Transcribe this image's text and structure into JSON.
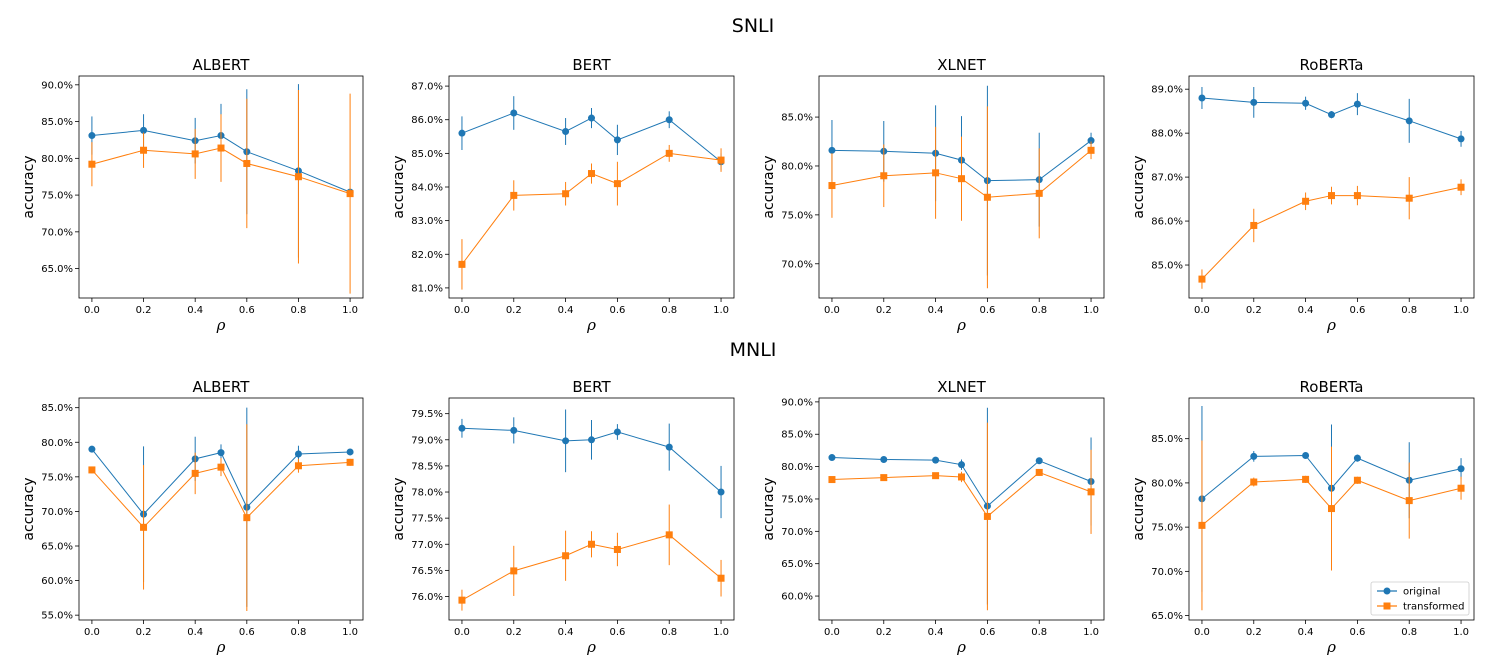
{
  "colors": {
    "original": "#1f77b4",
    "transformed": "#ff7f0e"
  },
  "legend": {
    "placement": "lower-right",
    "entries": [
      "original",
      "transformed"
    ]
  },
  "sections": [
    {
      "title": "SNLI"
    },
    {
      "title": "MNLI"
    }
  ],
  "chart_data": [
    {
      "type": "line",
      "group": "SNLI",
      "title": "ALBERT",
      "xlabel": "ρ",
      "ylabel": "accuracy",
      "x": [
        0.0,
        0.2,
        0.4,
        0.5,
        0.6,
        0.8,
        1.0
      ],
      "xticks": [
        "0.0",
        "0.2",
        "0.4",
        "0.6",
        "0.8",
        "1.0"
      ],
      "ylim": [
        61.0,
        91.2
      ],
      "yticks": [
        65.0,
        70.0,
        75.0,
        80.0,
        85.0,
        90.0
      ],
      "series": [
        {
          "name": "original",
          "marker": "circle",
          "values": [
            83.1,
            83.8,
            82.4,
            83.1,
            80.9,
            78.3,
            75.4
          ],
          "err": [
            2.6,
            2.2,
            3.1,
            4.3,
            8.5,
            11.8,
            0.5
          ]
        },
        {
          "name": "transformed",
          "marker": "square",
          "values": [
            79.2,
            81.1,
            80.6,
            81.4,
            79.3,
            77.5,
            75.2
          ],
          "err": [
            3.0,
            2.4,
            3.4,
            4.6,
            8.8,
            11.8,
            13.6
          ]
        }
      ]
    },
    {
      "type": "line",
      "group": "SNLI",
      "title": "BERT",
      "xlabel": "ρ",
      "ylabel": "accuracy",
      "x": [
        0.0,
        0.2,
        0.4,
        0.5,
        0.6,
        0.8,
        1.0
      ],
      "xticks": [
        "0.0",
        "0.2",
        "0.4",
        "0.6",
        "0.8",
        "1.0"
      ],
      "ylim": [
        80.7,
        87.3
      ],
      "yticks": [
        81.0,
        82.0,
        83.0,
        84.0,
        85.0,
        86.0,
        87.0
      ],
      "series": [
        {
          "name": "original",
          "marker": "circle",
          "values": [
            85.6,
            86.2,
            85.65,
            86.05,
            85.4,
            86.0,
            84.75
          ],
          "err": [
            0.5,
            0.5,
            0.4,
            0.3,
            0.45,
            0.25,
            0.25
          ]
        },
        {
          "name": "transformed",
          "marker": "square",
          "values": [
            81.7,
            83.75,
            83.8,
            84.4,
            84.1,
            85.0,
            84.8
          ],
          "err": [
            0.75,
            0.45,
            0.35,
            0.3,
            0.65,
            0.25,
            0.35
          ]
        }
      ]
    },
    {
      "type": "line",
      "group": "SNLI",
      "title": "XLNET",
      "xlabel": "ρ",
      "ylabel": "accuracy",
      "x": [
        0.0,
        0.2,
        0.4,
        0.5,
        0.6,
        0.8,
        1.0
      ],
      "xticks": [
        "0.0",
        "0.2",
        "0.4",
        "0.6",
        "0.8",
        "1.0"
      ],
      "ylim": [
        66.5,
        89.2
      ],
      "yticks": [
        70.0,
        75.0,
        80.0,
        85.0
      ],
      "series": [
        {
          "name": "original",
          "marker": "circle",
          "values": [
            81.6,
            81.5,
            81.3,
            80.6,
            78.5,
            78.6,
            82.6
          ],
          "err": [
            3.1,
            3.1,
            4.9,
            4.5,
            9.7,
            4.8,
            0.8
          ]
        },
        {
          "name": "transformed",
          "marker": "square",
          "values": [
            78.0,
            79.0,
            79.3,
            78.7,
            76.8,
            77.2,
            81.6
          ],
          "err": [
            3.3,
            3.2,
            4.7,
            4.3,
            9.3,
            4.6,
            0.9
          ]
        }
      ]
    },
    {
      "type": "line",
      "group": "SNLI",
      "title": "RoBERTa",
      "xlabel": "ρ",
      "ylabel": "accuracy",
      "x": [
        0.0,
        0.2,
        0.4,
        0.5,
        0.6,
        0.8,
        1.0
      ],
      "xticks": [
        "0.0",
        "0.2",
        "0.4",
        "0.6",
        "0.8",
        "1.0"
      ],
      "ylim": [
        84.25,
        89.3
      ],
      "yticks": [
        85.0,
        86.0,
        87.0,
        88.0,
        89.0
      ],
      "series": [
        {
          "name": "original",
          "marker": "circle",
          "values": [
            88.8,
            88.7,
            88.68,
            88.42,
            88.66,
            88.28,
            87.87
          ],
          "err": [
            0.25,
            0.35,
            0.15,
            0.08,
            0.25,
            0.5,
            0.18
          ]
        },
        {
          "name": "transformed",
          "marker": "square",
          "values": [
            84.68,
            85.9,
            86.45,
            86.58,
            86.58,
            86.52,
            86.77
          ],
          "err": [
            0.22,
            0.38,
            0.2,
            0.2,
            0.22,
            0.48,
            0.18
          ]
        }
      ]
    },
    {
      "type": "line",
      "group": "MNLI",
      "title": "ALBERT",
      "xlabel": "ρ",
      "ylabel": "accuracy",
      "x": [
        0.0,
        0.2,
        0.4,
        0.5,
        0.6,
        0.8,
        1.0
      ],
      "xticks": [
        "0.0",
        "0.2",
        "0.4",
        "0.6",
        "0.8",
        "1.0"
      ],
      "ylim": [
        54.3,
        86.4
      ],
      "yticks": [
        55.0,
        60.0,
        65.0,
        70.0,
        75.0,
        80.0,
        85.0
      ],
      "series": [
        {
          "name": "original",
          "marker": "circle",
          "values": [
            79.0,
            69.6,
            77.6,
            78.5,
            70.6,
            78.3,
            78.6
          ],
          "err": [
            0.4,
            9.8,
            3.2,
            1.2,
            14.4,
            1.2,
            0.4
          ]
        },
        {
          "name": "transformed",
          "marker": "square",
          "values": [
            76.0,
            67.7,
            75.5,
            76.4,
            69.1,
            76.6,
            77.1
          ],
          "err": [
            0.5,
            9.0,
            3.0,
            1.3,
            13.5,
            1.0,
            0.5
          ]
        }
      ]
    },
    {
      "type": "line",
      "group": "MNLI",
      "title": "BERT",
      "xlabel": "ρ",
      "ylabel": "accuracy",
      "x": [
        0.0,
        0.2,
        0.4,
        0.5,
        0.6,
        0.8,
        1.0
      ],
      "xticks": [
        "0.0",
        "0.2",
        "0.4",
        "0.6",
        "0.8",
        "1.0"
      ],
      "ylim": [
        75.55,
        79.8
      ],
      "yticks": [
        76.0,
        76.5,
        77.0,
        77.5,
        78.0,
        78.5,
        79.0,
        79.5
      ],
      "series": [
        {
          "name": "original",
          "marker": "circle",
          "values": [
            79.22,
            79.18,
            78.98,
            79.0,
            79.15,
            78.86,
            78.0
          ],
          "err": [
            0.18,
            0.25,
            0.6,
            0.38,
            0.15,
            0.45,
            0.5
          ]
        },
        {
          "name": "transformed",
          "marker": "square",
          "values": [
            75.93,
            76.49,
            76.78,
            77.0,
            76.9,
            77.18,
            76.35
          ],
          "err": [
            0.2,
            0.48,
            0.48,
            0.25,
            0.32,
            0.58,
            0.35
          ]
        }
      ]
    },
    {
      "type": "line",
      "group": "MNLI",
      "title": "XLNET",
      "xlabel": "ρ",
      "ylabel": "accuracy",
      "x": [
        0.0,
        0.2,
        0.4,
        0.5,
        0.6,
        0.8,
        1.0
      ],
      "xticks": [
        "0.0",
        "0.2",
        "0.4",
        "0.6",
        "0.8",
        "1.0"
      ],
      "ylim": [
        56.3,
        90.6
      ],
      "yticks": [
        60.0,
        65.0,
        70.0,
        75.0,
        80.0,
        85.0,
        90.0
      ],
      "series": [
        {
          "name": "original",
          "marker": "circle",
          "values": [
            81.4,
            81.1,
            81.0,
            80.3,
            73.9,
            80.9,
            77.7
          ],
          "err": [
            0.3,
            0.3,
            0.3,
            0.8,
            15.2,
            0.5,
            6.8
          ]
        },
        {
          "name": "transformed",
          "marker": "square",
          "values": [
            78.0,
            78.3,
            78.6,
            78.4,
            72.3,
            79.1,
            76.1
          ],
          "err": [
            0.3,
            0.3,
            0.3,
            0.8,
            14.5,
            0.5,
            6.5
          ]
        }
      ]
    },
    {
      "type": "line",
      "group": "MNLI",
      "title": "RoBERTa",
      "xlabel": "ρ",
      "ylabel": "accuracy",
      "x": [
        0.0,
        0.2,
        0.4,
        0.5,
        0.6,
        0.8,
        1.0
      ],
      "xticks": [
        "0.0",
        "0.2",
        "0.4",
        "0.6",
        "0.8",
        "1.0"
      ],
      "ylim": [
        64.5,
        89.6
      ],
      "yticks": [
        65.0,
        70.0,
        75.0,
        80.0,
        85.0
      ],
      "series": [
        {
          "name": "original",
          "marker": "circle",
          "values": [
            78.2,
            83.0,
            83.1,
            79.4,
            82.8,
            80.3,
            81.6
          ],
          "err": [
            10.5,
            0.6,
            0.3,
            7.2,
            0.4,
            4.3,
            1.2
          ]
        },
        {
          "name": "transformed",
          "marker": "square",
          "values": [
            75.2,
            80.1,
            80.4,
            77.1,
            80.3,
            78.0,
            79.4
          ],
          "err": [
            9.6,
            0.5,
            0.4,
            7.0,
            0.4,
            4.3,
            1.3
          ]
        }
      ]
    }
  ]
}
